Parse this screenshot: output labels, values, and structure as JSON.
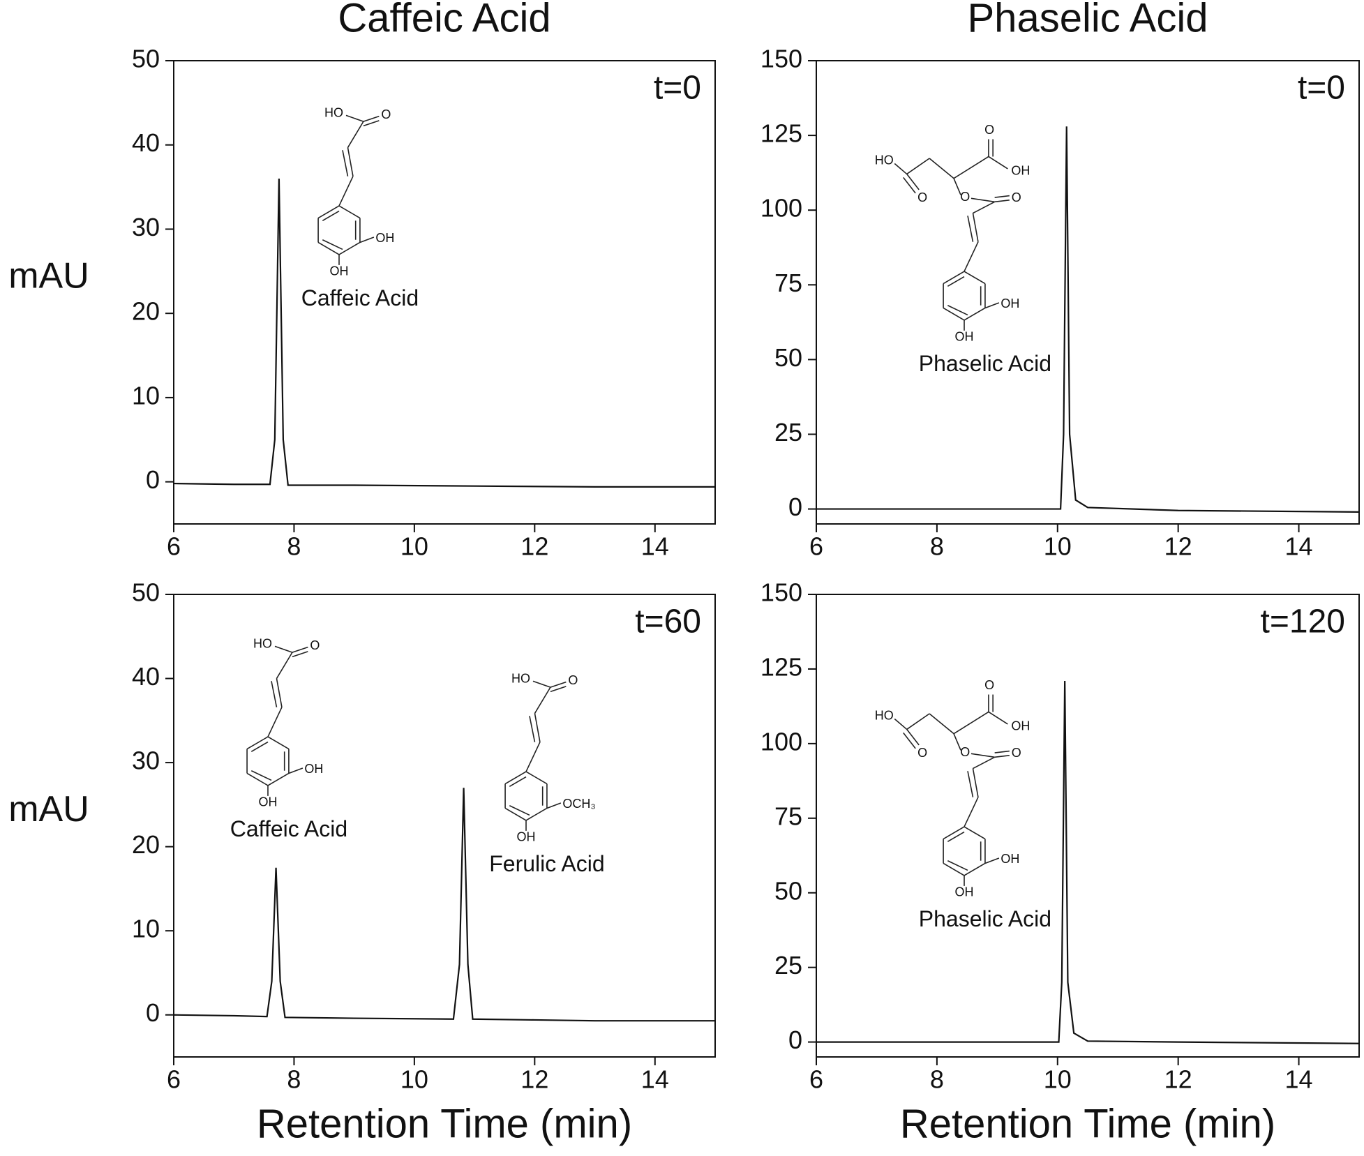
{
  "chart_data": [
    {
      "type": "line",
      "title": "Caffeic Acid",
      "ylabel": "mAU",
      "label": "t=0",
      "color": "#111111",
      "x": [
        6,
        7,
        7.6,
        7.68,
        7.75,
        7.82,
        7.9,
        9,
        11,
        13,
        15
      ],
      "values": [
        -0.2,
        -0.3,
        -0.3,
        5,
        36,
        5,
        -0.4,
        -0.4,
        -0.5,
        -0.6,
        -0.6
      ],
      "xlim": [
        6,
        15
      ],
      "xticks": [
        6,
        8,
        10,
        12,
        14
      ],
      "ylim": [
        -5,
        50
      ],
      "yticks": [
        0,
        10,
        20,
        30,
        40,
        50
      ],
      "structures": [
        {
          "kind": "caffeic",
          "name": "Caffeic Acid",
          "atoms": [
            "HO",
            "O",
            "OH",
            "OH"
          ]
        }
      ]
    },
    {
      "type": "line",
      "title": "Phaselic Acid",
      "label": "t=0",
      "color": "#111111",
      "x": [
        6,
        9.9,
        10.05,
        10.1,
        10.15,
        10.2,
        10.3,
        10.5,
        12,
        15
      ],
      "values": [
        0,
        0,
        0,
        25,
        128,
        25,
        3,
        0.5,
        -0.5,
        -1
      ],
      "xlim": [
        6,
        15
      ],
      "xticks": [
        6,
        8,
        10,
        12,
        14
      ],
      "ylim": [
        -5,
        150
      ],
      "yticks": [
        0,
        25,
        50,
        75,
        100,
        125,
        150
      ],
      "structures": [
        {
          "kind": "phaselic",
          "name": "Phaselic Acid",
          "atoms": [
            "HO",
            "O",
            "O",
            "OH",
            "O",
            "O",
            "OH",
            "OH"
          ]
        }
      ]
    },
    {
      "type": "line",
      "ylabel": "mAU",
      "xlabel": "Retention Time (min)",
      "label": "t=60",
      "color": "#111111",
      "x": [
        6,
        7,
        7.55,
        7.63,
        7.7,
        7.77,
        7.85,
        9,
        10.65,
        10.75,
        10.82,
        10.89,
        10.97,
        12,
        13,
        15
      ],
      "values": [
        0,
        -0.1,
        -0.2,
        4,
        17.5,
        4,
        -0.3,
        -0.4,
        -0.5,
        6,
        27,
        6,
        -0.5,
        -0.6,
        -0.7,
        -0.7
      ],
      "xlim": [
        6,
        15
      ],
      "xticks": [
        6,
        8,
        10,
        12,
        14
      ],
      "ylim": [
        -5,
        50
      ],
      "yticks": [
        0,
        10,
        20,
        30,
        40,
        50
      ],
      "structures": [
        {
          "kind": "caffeic",
          "name": "Caffeic Acid",
          "atoms": [
            "HO",
            "O",
            "OH",
            "OH"
          ]
        },
        {
          "kind": "ferulic",
          "name": "Ferulic Acid",
          "atoms": [
            "HO",
            "O",
            "OCH₃",
            "OH"
          ]
        }
      ]
    },
    {
      "type": "line",
      "xlabel": "Retention Time (min)",
      "label": "t=120",
      "color": "#111111",
      "x": [
        6,
        9.9,
        10.02,
        10.07,
        10.12,
        10.17,
        10.27,
        10.5,
        12,
        15
      ],
      "values": [
        0,
        0,
        0,
        20,
        121,
        20,
        3,
        0.3,
        0,
        -0.5
      ],
      "xlim": [
        6,
        15
      ],
      "xticks": [
        6,
        8,
        10,
        12,
        14
      ],
      "ylim": [
        -5,
        150
      ],
      "yticks": [
        0,
        25,
        50,
        75,
        100,
        125,
        150
      ],
      "structures": [
        {
          "kind": "phaselic",
          "name": "Phaselic Acid",
          "atoms": [
            "HO",
            "O",
            "O",
            "OH",
            "O",
            "O",
            "OH",
            "OH"
          ]
        }
      ]
    }
  ]
}
